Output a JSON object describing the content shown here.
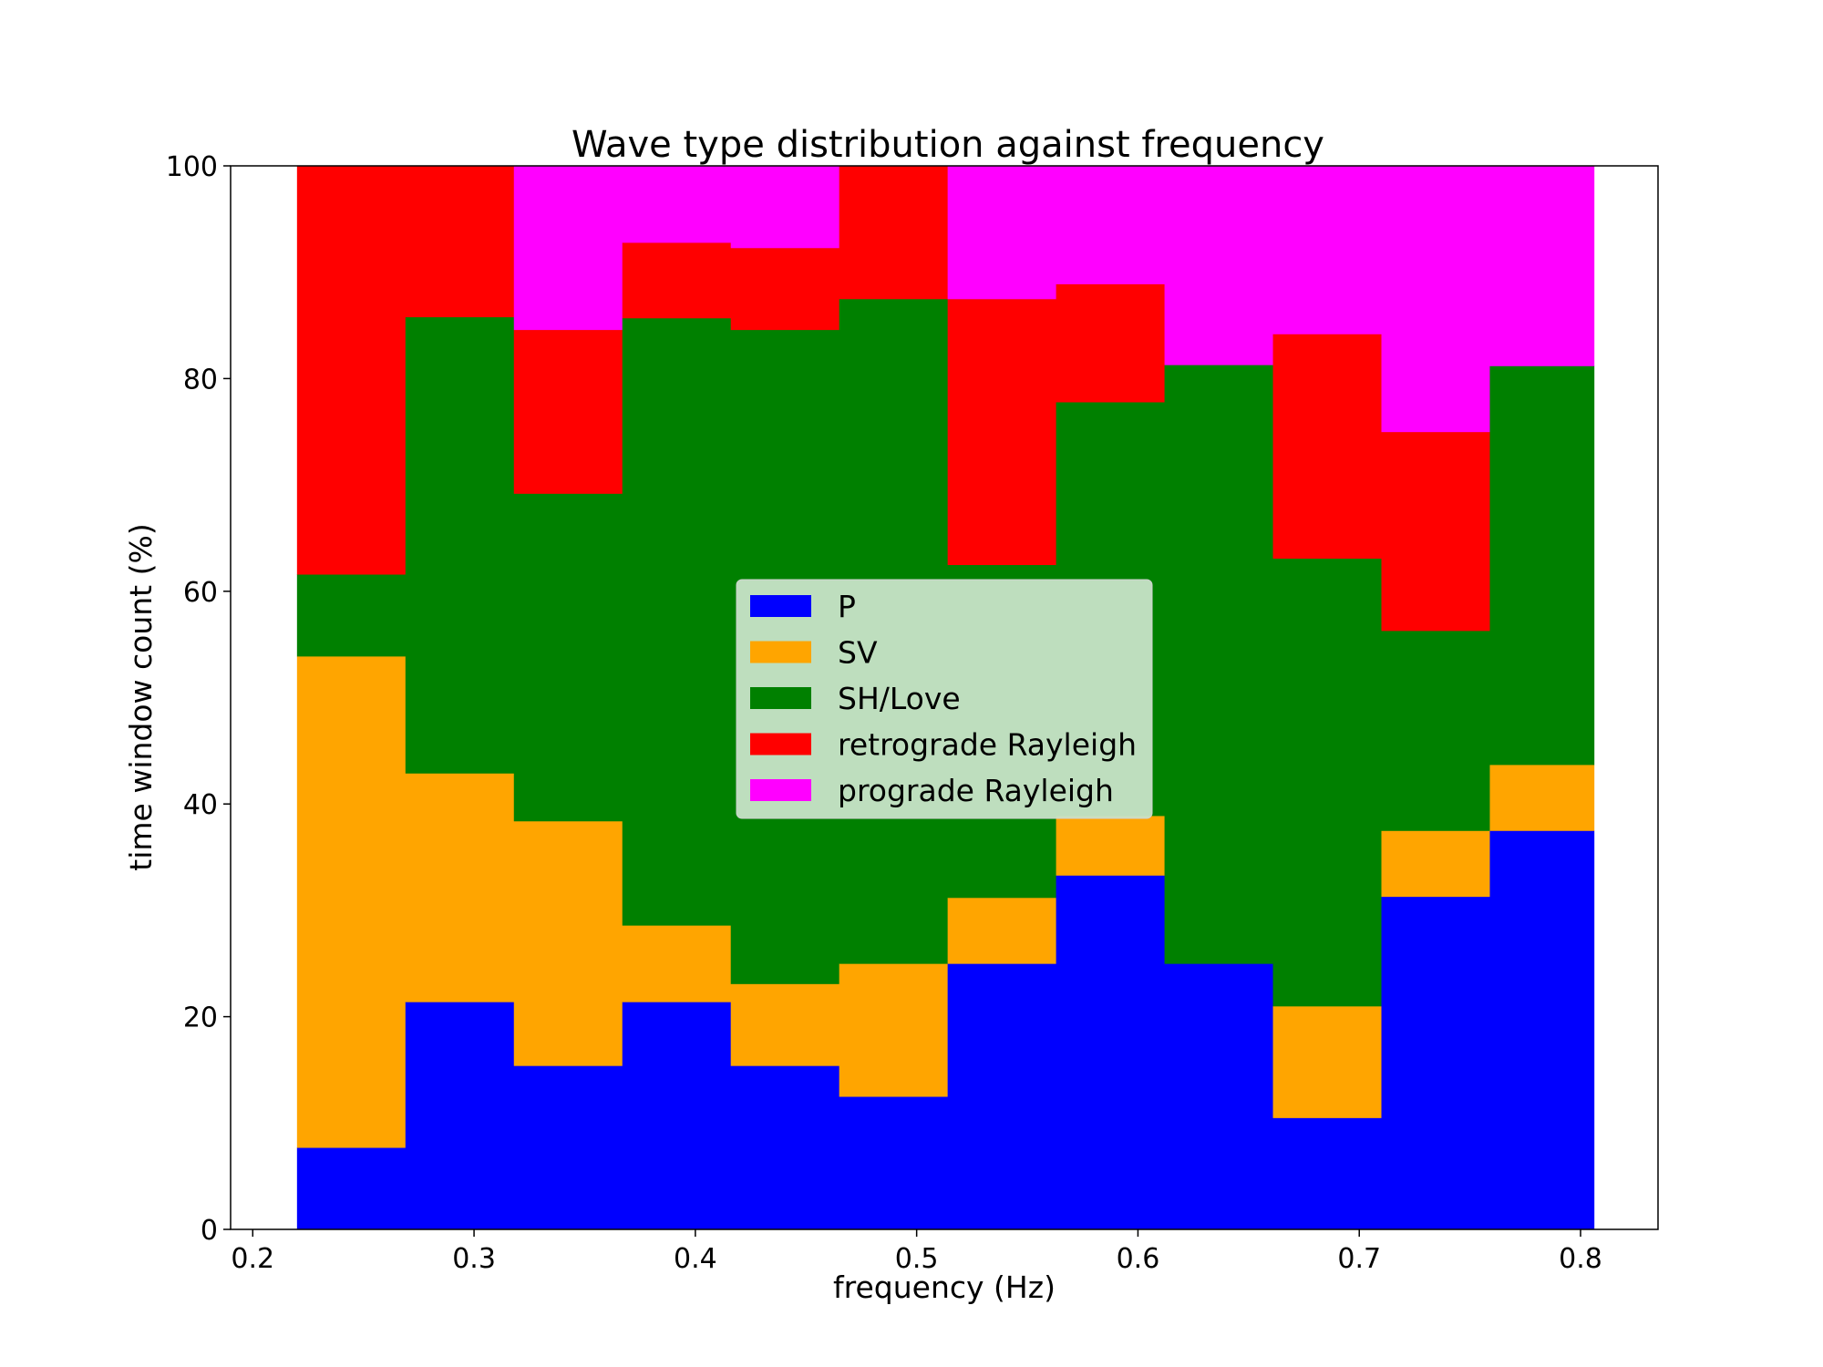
{
  "chart_data": {
    "type": "bar",
    "stacked": true,
    "title": "Wave type distribution against frequency",
    "xlabel": "frequency (Hz)",
    "ylabel": "time window count (%)",
    "xlim": [
      0.19,
      0.835
    ],
    "ylim": [
      0,
      100
    ],
    "xticks": [
      0.2,
      0.3,
      0.4,
      0.5,
      0.6,
      0.7,
      0.8
    ],
    "xtick_labels": [
      "0.2",
      "0.3",
      "0.4",
      "0.5",
      "0.6",
      "0.7",
      "0.8"
    ],
    "yticks": [
      0,
      20,
      40,
      60,
      80,
      100
    ],
    "ytick_labels": [
      "0",
      "20",
      "40",
      "60",
      "80",
      "100"
    ],
    "bin_edges": [
      0.22,
      0.269,
      0.318,
      0.367,
      0.416,
      0.465,
      0.514,
      0.563,
      0.612,
      0.661,
      0.71,
      0.759,
      0.806
    ],
    "series": [
      {
        "name": "P",
        "color": "#0000ff",
        "values": [
          7.7,
          21.4,
          15.4,
          21.4,
          15.4,
          12.5,
          25.0,
          33.3,
          25.0,
          10.5,
          31.3,
          37.5
        ]
      },
      {
        "name": "SV",
        "color": "#ffa500",
        "values": [
          46.2,
          21.5,
          23.0,
          7.2,
          7.7,
          12.5,
          6.2,
          5.6,
          0.0,
          10.5,
          6.2,
          6.2
        ]
      },
      {
        "name": "SH/Love",
        "color": "#008000",
        "values": [
          7.7,
          42.9,
          30.8,
          57.1,
          61.5,
          62.5,
          31.3,
          38.9,
          56.3,
          42.1,
          18.8,
          37.5
        ]
      },
      {
        "name": "retrograde Rayleigh",
        "color": "#ff0000",
        "values": [
          38.4,
          14.2,
          15.4,
          7.1,
          7.7,
          12.5,
          25.0,
          11.1,
          0.0,
          21.1,
          18.7,
          0.0
        ]
      },
      {
        "name": "prograde Rayleigh",
        "color": "#ff00ff",
        "values": [
          0.0,
          0.0,
          15.4,
          7.2,
          7.7,
          0.0,
          12.5,
          11.1,
          18.7,
          15.8,
          25.0,
          18.8
        ]
      }
    ],
    "legend": {
      "placement": "center",
      "background": "#c8e3c8"
    },
    "grid": false
  }
}
